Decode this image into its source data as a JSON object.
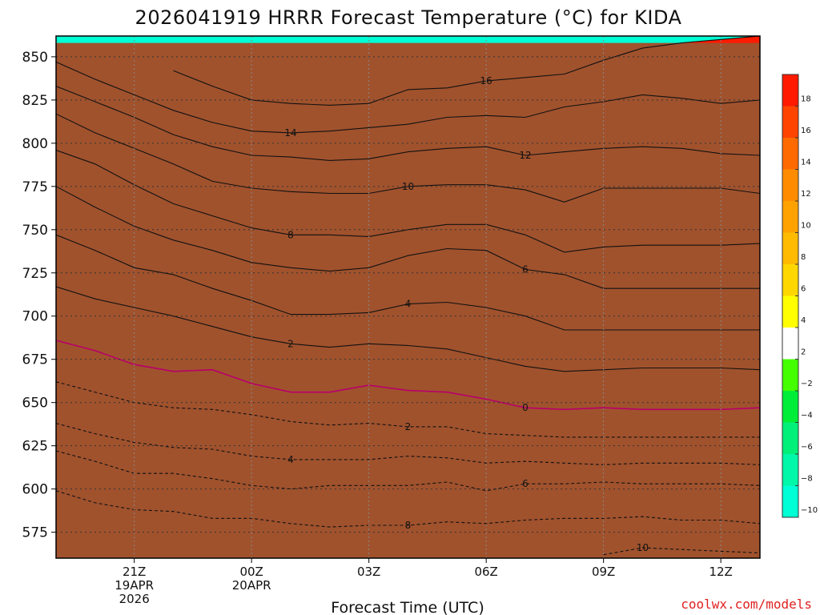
{
  "chart_data": {
    "type": "contour",
    "title": "2026041919 HRRR Forecast Temperature (°C) for KIDA",
    "xlabel": "Forecast Time (UTC)",
    "ylabel": "",
    "xlim": [
      -2.0,
      16.0
    ],
    "ylim": [
      862,
      560
    ],
    "x_ticks": [
      {
        "value": 0,
        "lines": [
          "21Z",
          "19APR",
          "2026"
        ]
      },
      {
        "value": 3,
        "lines": [
          "00Z",
          "20APR"
        ]
      },
      {
        "value": 6,
        "lines": [
          "03Z"
        ]
      },
      {
        "value": 9,
        "lines": [
          "06Z"
        ]
      },
      {
        "value": 12,
        "lines": [
          "09Z"
        ]
      },
      {
        "value": 15,
        "lines": [
          "12Z"
        ]
      }
    ],
    "y_ticks": [
      575,
      600,
      625,
      650,
      675,
      700,
      725,
      750,
      775,
      800,
      825,
      850
    ],
    "time_hours": [
      -2,
      -1,
      0,
      1,
      2,
      3,
      4,
      5,
      6,
      7,
      8,
      9,
      10,
      11,
      12,
      13,
      14,
      15,
      16
    ],
    "isotherms": [
      {
        "level": 10,
        "pressure": [
          null,
          null,
          null,
          null,
          null,
          null,
          null,
          null,
          null,
          null,
          null,
          null,
          null,
          null,
          562,
          566,
          565,
          564,
          563
        ]
      },
      {
        "level": 8,
        "pressure": [
          599,
          592,
          588,
          587,
          583,
          583,
          580,
          578,
          579,
          579,
          581,
          580,
          582,
          583,
          583,
          584,
          582,
          582,
          580
        ]
      },
      {
        "level": 6,
        "pressure": [
          622,
          616,
          609,
          609,
          606,
          602,
          600,
          602,
          602,
          602,
          604,
          599,
          603,
          603,
          604,
          603,
          603,
          603,
          602
        ]
      },
      {
        "level": 4,
        "pressure": [
          638,
          632,
          627,
          624,
          623,
          619,
          617,
          617,
          617,
          619,
          618,
          615,
          616,
          615,
          614,
          615,
          615,
          615,
          614
        ]
      },
      {
        "level": 2,
        "pressure": [
          662,
          656,
          650,
          647,
          646,
          643,
          639,
          637,
          638,
          636,
          636,
          632,
          631,
          630,
          630,
          630,
          630,
          630,
          630
        ]
      },
      {
        "level": 0,
        "pressure": [
          686,
          680,
          672,
          668,
          669,
          661,
          656,
          656,
          660,
          657,
          656,
          652,
          647,
          646,
          647,
          646,
          646,
          646,
          647
        ]
      },
      {
        "level": 2,
        "pressure": [
          717,
          710,
          705,
          700,
          694,
          688,
          684,
          682,
          684,
          683,
          681,
          676,
          671,
          668,
          669,
          670,
          670,
          670,
          669
        ]
      },
      {
        "level": 4,
        "pressure": [
          747,
          738,
          728,
          724,
          716,
          709,
          701,
          701,
          702,
          707,
          708,
          705,
          700,
          692,
          692,
          692,
          692,
          692,
          692
        ]
      },
      {
        "level": 6,
        "pressure": [
          775,
          763,
          752,
          744,
          738,
          731,
          728,
          726,
          728,
          735,
          739,
          738,
          727,
          724,
          716,
          716,
          716,
          716,
          716
        ]
      },
      {
        "level": 8,
        "pressure": [
          796,
          788,
          776,
          765,
          758,
          751,
          747,
          747,
          746,
          750,
          753,
          753,
          747,
          737,
          740,
          741,
          741,
          741,
          742
        ]
      },
      {
        "level": 10,
        "pressure": [
          817,
          806,
          797,
          788,
          778,
          774,
          772,
          771,
          771,
          775,
          776,
          776,
          773,
          766,
          774,
          774,
          774,
          774,
          771
        ]
      },
      {
        "level": 12,
        "pressure": [
          833,
          824,
          815,
          805,
          798,
          793,
          792,
          790,
          791,
          795,
          797,
          798,
          793,
          795,
          797,
          798,
          797,
          794,
          793
        ]
      },
      {
        "level": 14,
        "pressure": [
          847,
          837,
          828,
          819,
          812,
          807,
          806,
          807,
          809,
          811,
          815,
          816,
          815,
          821,
          824,
          828,
          826,
          823,
          825
        ]
      },
      {
        "level": 16,
        "pressure": [
          null,
          null,
          null,
          842,
          833,
          825,
          823,
          822,
          823,
          831,
          832,
          836,
          838,
          840,
          848,
          855,
          858,
          860,
          862
        ]
      }
    ],
    "colorbar": {
      "labels": [
        18,
        16,
        14,
        12,
        10,
        8,
        6,
        4,
        2,
        -2,
        -4,
        -6,
        -8,
        -10
      ],
      "colors": [
        "#ff1a00",
        "#ff4400",
        "#ff6a00",
        "#ff8c00",
        "#ffa200",
        "#ffbb00",
        "#ffd700",
        "#ffff00",
        "#ffffff",
        "#44ff00",
        "#00ee38",
        "#00f07a",
        "#00f8a8",
        "#00ffd4"
      ]
    },
    "ground_color": "#a0522d"
  },
  "credit": "coolwx.com/models"
}
